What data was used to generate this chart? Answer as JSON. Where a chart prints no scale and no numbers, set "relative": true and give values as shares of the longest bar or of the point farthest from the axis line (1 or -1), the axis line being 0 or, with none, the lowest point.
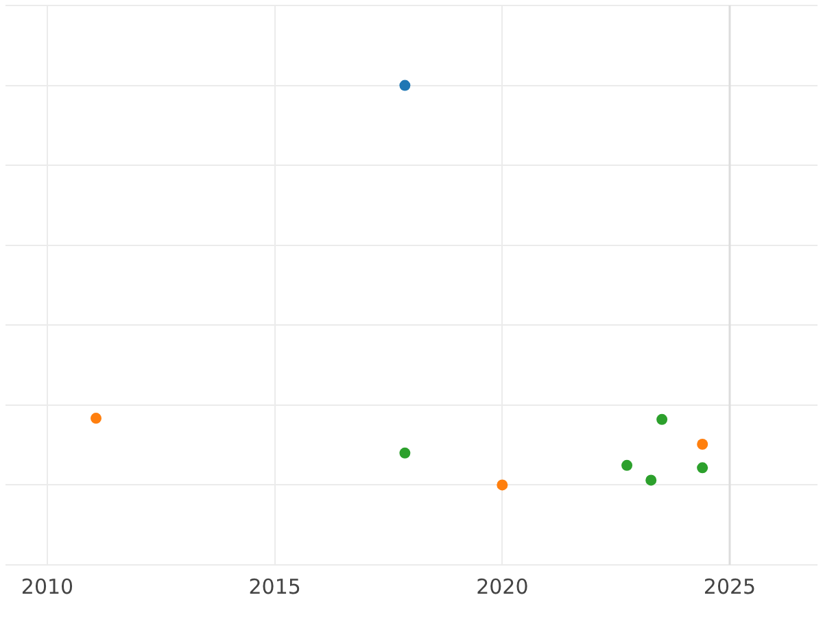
{
  "chart_data": {
    "type": "scatter",
    "relative": true,
    "grid": true,
    "legend": false,
    "marker": "circle",
    "tick_labels": "x",
    "xlim": [
      2009.08,
      2026.93
    ],
    "xticks": [
      2010,
      2015,
      2020,
      2025
    ],
    "ref_lines": [
      {
        "axis": "x",
        "value": 2025,
        "color": "#dddddd"
      }
    ],
    "series": [
      {
        "color": "#1f77b4",
        "x": [
          2017.86
        ],
        "values": [
          1
        ]
      },
      {
        "color": "#ff7f0e",
        "x": [
          2011.07,
          2020.0,
          2024.4
        ],
        "values": [
          0.167,
          0,
          0.102
        ]
      },
      {
        "color": "#2ca02c",
        "x": [
          2017.86,
          2022.74,
          2023.27,
          2023.51,
          2024.4
        ],
        "values": [
          0.08,
          0.049,
          0.012,
          0.164,
          0.043
        ]
      }
    ]
  }
}
